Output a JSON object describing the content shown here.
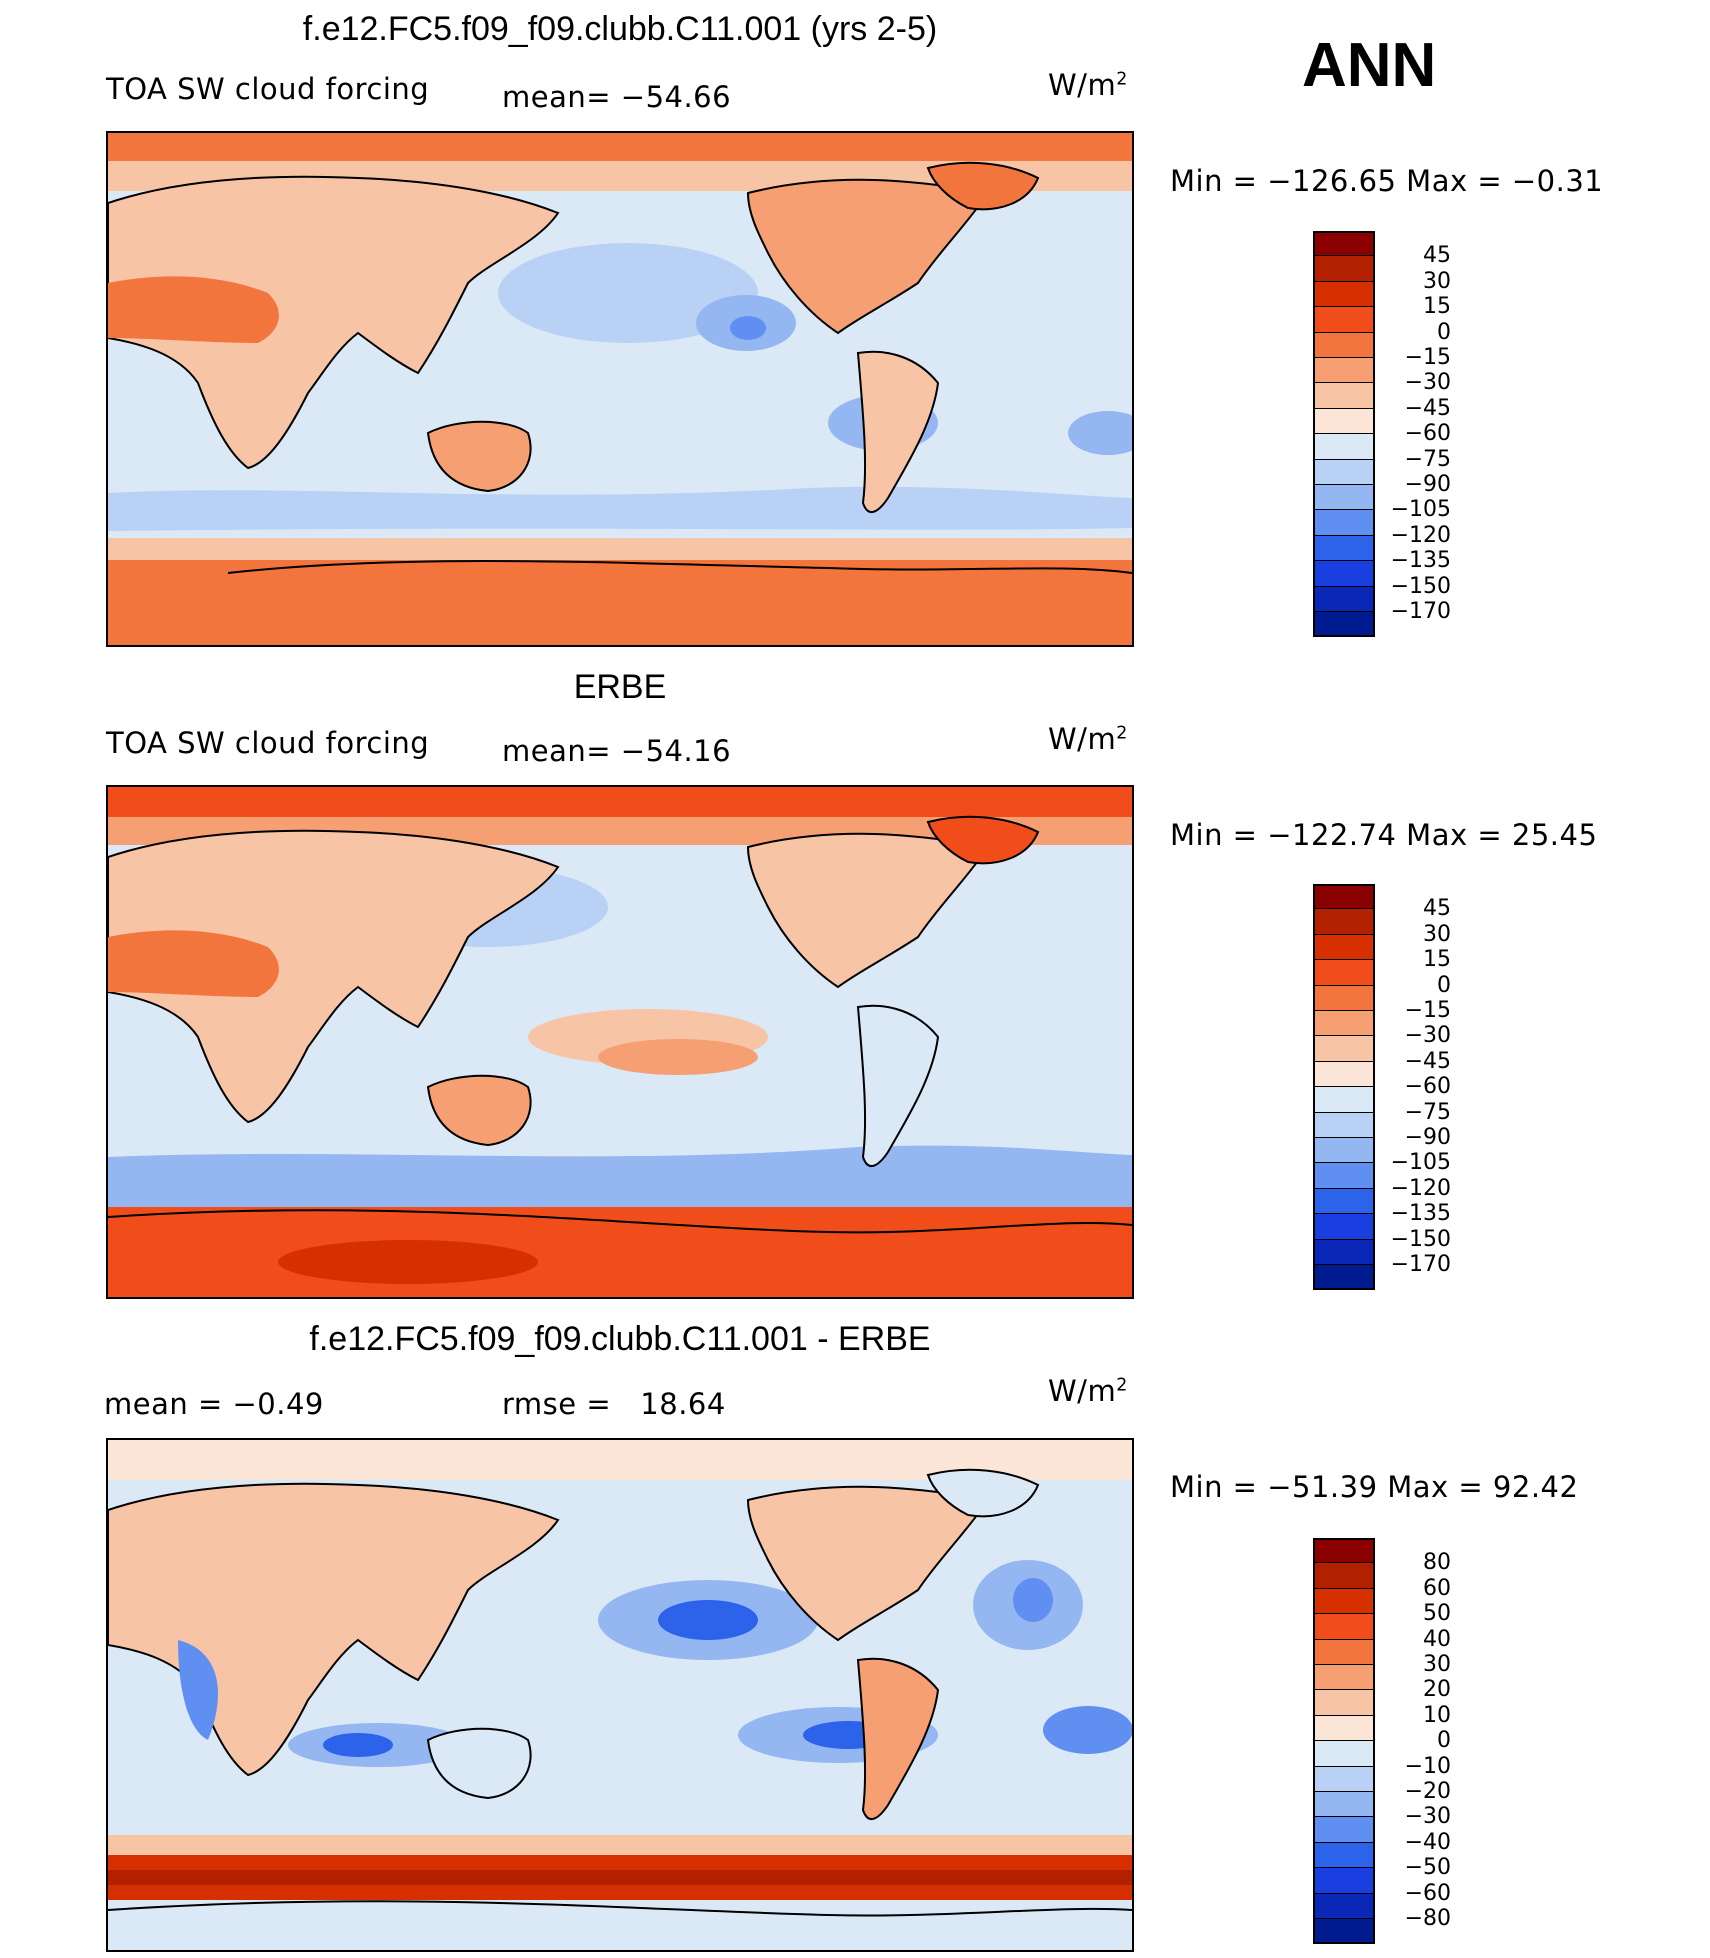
{
  "season": "ANN",
  "palette_main": [
    "#8b0000",
    "#b22000",
    "#d63000",
    "#f04d1a",
    "#f2753d",
    "#f59f73",
    "#f8c4a6",
    "#fbe5d6",
    "#dbe9f7",
    "#b8d1f5",
    "#94b7f2",
    "#5f8ff0",
    "#2d62eb",
    "#1a3fe0",
    "#0a27b8",
    "#001a90"
  ],
  "palette_diff": [
    "#8b0000",
    "#b22000",
    "#d63000",
    "#f04d1a",
    "#f2753d",
    "#f59f73",
    "#f8c4a6",
    "#fbe5d6",
    "#dbe9f7",
    "#b8d1f5",
    "#94b7f2",
    "#5f8ff0",
    "#2d62eb",
    "#1a3fe0",
    "#0a27b8",
    "#001a90"
  ],
  "panels": [
    {
      "title": "f.e12.FC5.f09_f09.clubb.C11.001 (yrs 2-5)",
      "left_label": "TOA SW cloud forcing",
      "stat_label": "mean=",
      "stat_value": "−54.66",
      "units_base": "W/m",
      "units_exp": "2",
      "minmax_text": "Min  =  −126.65  Max  =    −0.31",
      "colorbar_ticks": [
        "45",
        "30",
        "15",
        "0",
        "−15",
        "−30",
        "−45",
        "−60",
        "−75",
        "−90",
        "−105",
        "−120",
        "−135",
        "−150",
        "−170"
      ]
    },
    {
      "title": "ERBE",
      "left_label": "TOA SW cloud forcing",
      "stat_label": "mean=",
      "stat_value": "−54.16",
      "units_base": "W/m",
      "units_exp": "2",
      "minmax_text": "Min  =  −122.74  Max  =    25.45",
      "colorbar_ticks": [
        "45",
        "30",
        "15",
        "0",
        "−15",
        "−30",
        "−45",
        "−60",
        "−75",
        "−90",
        "−105",
        "−120",
        "−135",
        "−150",
        "−170"
      ]
    },
    {
      "title": "f.e12.FC5.f09_f09.clubb.C11.001 - ERBE",
      "left_label": "mean  =     −0.49",
      "stat_label": "rmse  =",
      "stat_value": "18.64",
      "units_base": "W/m",
      "units_exp": "2",
      "minmax_text": "Min  =  −51.39  Max  =    92.42",
      "colorbar_ticks": [
        "80",
        "60",
        "50",
        "40",
        "30",
        "20",
        "10",
        "0",
        "−10",
        "−20",
        "−30",
        "−40",
        "−50",
        "−60",
        "−80"
      ]
    }
  ]
}
